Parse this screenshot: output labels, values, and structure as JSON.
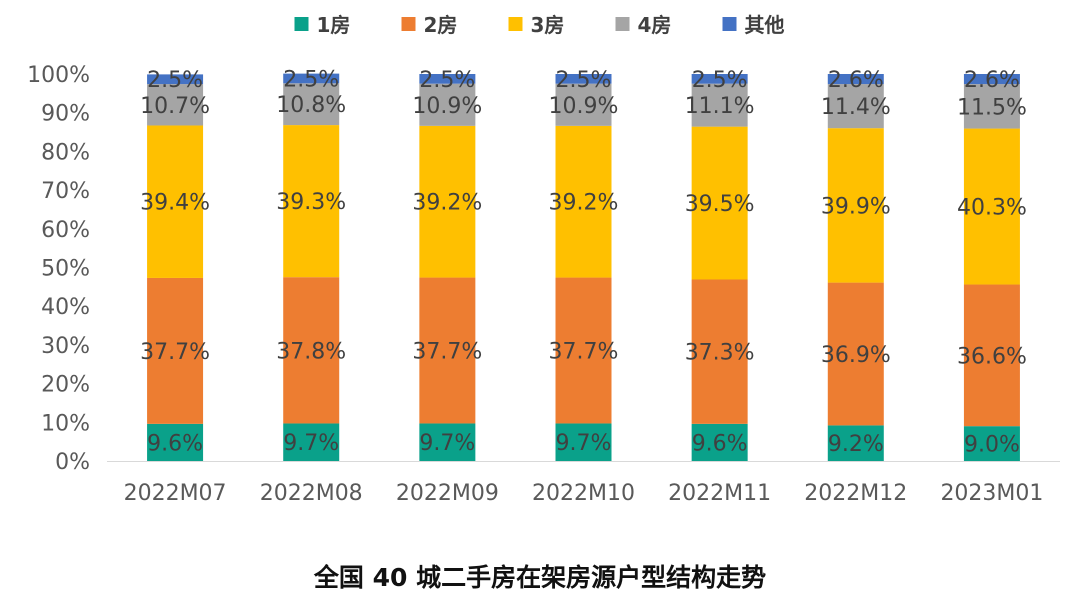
{
  "chart_data": {
    "type": "bar",
    "stacked": true,
    "title": "全国 40 城二手房在架房源户型结构走势",
    "categories": [
      "2022M07",
      "2022M08",
      "2022M09",
      "2022M10",
      "2022M11",
      "2022M12",
      "2023M01"
    ],
    "series": [
      {
        "name": "1房",
        "color": "#0aa18a",
        "values": [
          9.6,
          9.7,
          9.7,
          9.7,
          9.6,
          9.2,
          9.0
        ],
        "labels": [
          "9.6%",
          "9.7%",
          "9.7%",
          "9.7%",
          "9.6%",
          "9.2%",
          "9.0%"
        ]
      },
      {
        "name": "2房",
        "color": "#ed7d31",
        "values": [
          37.7,
          37.8,
          37.7,
          37.7,
          37.3,
          36.9,
          36.6
        ],
        "labels": [
          "37.7%",
          "37.8%",
          "37.7%",
          "37.7%",
          "37.3%",
          "36.9%",
          "36.6%"
        ]
      },
      {
        "name": "3房",
        "color": "#ffc000",
        "values": [
          39.4,
          39.3,
          39.2,
          39.2,
          39.5,
          39.9,
          40.3
        ],
        "labels": [
          "39.4%",
          "39.3%",
          "39.2%",
          "39.2%",
          "39.5%",
          "39.9%",
          "40.3%"
        ]
      },
      {
        "name": "4房",
        "color": "#a5a5a5",
        "values": [
          10.7,
          10.8,
          10.9,
          10.9,
          11.1,
          11.4,
          11.5
        ],
        "labels": [
          "10.7%",
          "10.8%",
          "10.9%",
          "10.9%",
          "11.1%",
          "11.4%",
          "11.5%"
        ]
      },
      {
        "name": "其他",
        "color": "#4472c4",
        "values": [
          2.5,
          2.5,
          2.5,
          2.5,
          2.5,
          2.6,
          2.6
        ],
        "labels": [
          "2.5%",
          "2.5%",
          "2.5%",
          "2.5%",
          "2.5%",
          "2.6%",
          "2.6%"
        ]
      }
    ],
    "y_ticks": [
      "0%",
      "10%",
      "20%",
      "30%",
      "40%",
      "50%",
      "60%",
      "70%",
      "80%",
      "90%",
      "100%"
    ],
    "ylim": [
      0,
      100
    ],
    "xlabel": "",
    "ylabel": "",
    "legend_position": "top-center",
    "grid": false
  }
}
